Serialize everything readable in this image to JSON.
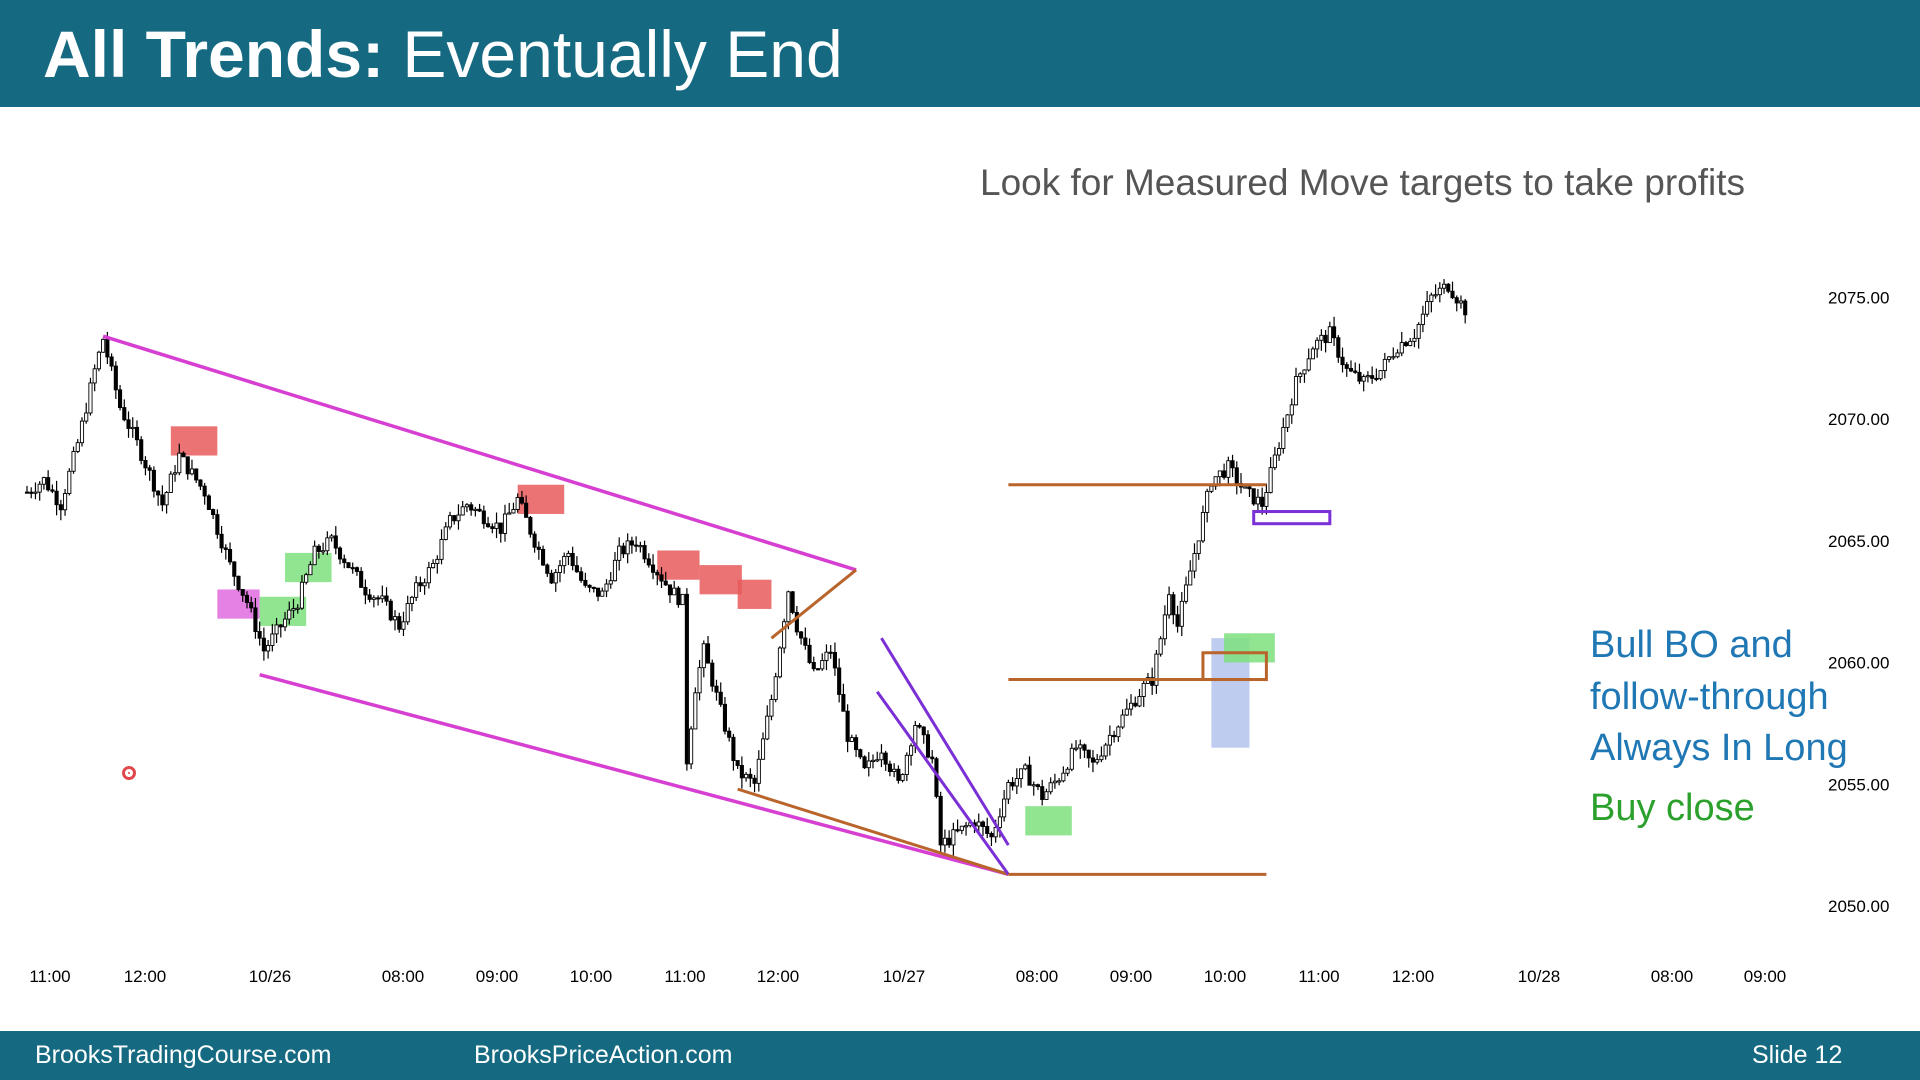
{
  "slide": {
    "title_bold": "All Trends:",
    "title_rest": " Eventually End",
    "subtitle": "Look for Measured Move targets to take profits",
    "footer_left": "BrooksTradingCourse.com",
    "footer_mid": "BrooksPriceAction.com",
    "footer_right": "Slide  12"
  },
  "notes": [
    {
      "text": "Bull BO and",
      "color": "#1f77b4"
    },
    {
      "text": "follow-through",
      "color": "#1f77b4"
    },
    {
      "text": "Always In Long",
      "color": "#1f77b4"
    },
    {
      "text": "Buy close",
      "color": "#2ca02c"
    }
  ],
  "colors": {
    "header": "#156a82",
    "channel_line": "#d63fd1",
    "measured_move": "#b8642b",
    "wedge_line": "#7b2fd6",
    "bear_box": "#e85b5b",
    "bull_box": "#7ee07e",
    "pink_box": "#e06be0",
    "blue_box": "#b3c3ec"
  },
  "chart_data": {
    "type": "candlestick",
    "ylim": [
      2048,
      2078
    ],
    "y_ticks": [
      "2050.00",
      "2055.00",
      "2060.00",
      "2065.00",
      "2070.00",
      "2075.00"
    ],
    "x_ticks": [
      "11:00",
      "12:00",
      "10/26",
      "08:00",
      "09:00",
      "10:00",
      "11:00",
      "12:00",
      "10/27",
      "08:00",
      "09:00",
      "10:00",
      "11:00",
      "12:00",
      "10/28",
      "08:00",
      "09:00"
    ],
    "close_path": [
      [
        0,
        2067
      ],
      [
        4,
        2067.5
      ],
      [
        8,
        2066.5
      ],
      [
        12,
        2069
      ],
      [
        16,
        2072
      ],
      [
        18,
        2073.3
      ],
      [
        22,
        2070.5
      ],
      [
        26,
        2069
      ],
      [
        32,
        2066.5
      ],
      [
        36,
        2068.5
      ],
      [
        42,
        2067
      ],
      [
        48,
        2064
      ],
      [
        52,
        2062.5
      ],
      [
        56,
        2060.5
      ],
      [
        60,
        2061.5
      ],
      [
        64,
        2062.5
      ],
      [
        68,
        2064.5
      ],
      [
        72,
        2065
      ],
      [
        76,
        2064
      ],
      [
        80,
        2063
      ],
      [
        84,
        2062.5
      ],
      [
        88,
        2061.5
      ],
      [
        92,
        2063
      ],
      [
        96,
        2064
      ],
      [
        100,
        2065.8
      ],
      [
        104,
        2066.5
      ],
      [
        108,
        2066
      ],
      [
        112,
        2065.5
      ],
      [
        116,
        2066.7
      ],
      [
        120,
        2065
      ],
      [
        124,
        2063.5
      ],
      [
        128,
        2064.5
      ],
      [
        132,
        2063
      ],
      [
        136,
        2062.8
      ],
      [
        140,
        2064.5
      ],
      [
        144,
        2065
      ],
      [
        148,
        2064
      ],
      [
        152,
        2063
      ],
      [
        155,
        2062.5
      ],
      [
        156,
        2056
      ],
      [
        158,
        2059
      ],
      [
        160,
        2060.5
      ],
      [
        164,
        2058
      ],
      [
        168,
        2055.5
      ],
      [
        172,
        2055
      ],
      [
        176,
        2058.5
      ],
      [
        180,
        2063
      ],
      [
        182,
        2061.5
      ],
      [
        186,
        2059.5
      ],
      [
        190,
        2060.5
      ],
      [
        194,
        2057
      ],
      [
        198,
        2055.5
      ],
      [
        202,
        2056.5
      ],
      [
        206,
        2055
      ],
      [
        210,
        2057.5
      ],
      [
        214,
        2056
      ],
      [
        216,
        2052.5
      ],
      [
        220,
        2053
      ],
      [
        224,
        2053.5
      ],
      [
        228,
        2052.8
      ],
      [
        232,
        2055
      ],
      [
        236,
        2055.5
      ],
      [
        240,
        2054.5
      ],
      [
        244,
        2055.3
      ],
      [
        248,
        2056.5
      ],
      [
        252,
        2055.8
      ],
      [
        256,
        2057
      ],
      [
        260,
        2058
      ],
      [
        264,
        2059
      ],
      [
        266,
        2059.3
      ],
      [
        268,
        2061
      ],
      [
        270,
        2063
      ],
      [
        272,
        2061.5
      ],
      [
        276,
        2064.5
      ],
      [
        280,
        2067.5
      ],
      [
        284,
        2068
      ],
      [
        288,
        2067
      ],
      [
        292,
        2066.5
      ],
      [
        296,
        2069
      ],
      [
        300,
        2071.5
      ],
      [
        304,
        2073
      ],
      [
        308,
        2073.5
      ],
      [
        312,
        2072
      ],
      [
        316,
        2071.5
      ],
      [
        320,
        2072
      ],
      [
        324,
        2073
      ],
      [
        328,
        2073.5
      ],
      [
        332,
        2075
      ],
      [
        336,
        2075.5
      ],
      [
        340,
        2074.5
      ]
    ]
  }
}
